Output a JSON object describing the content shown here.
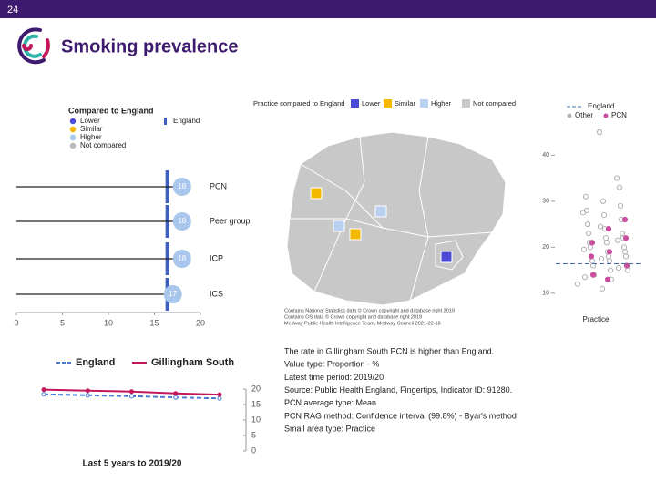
{
  "slide_number": "24",
  "title": "Smoking prevalence",
  "chart_data": [
    {
      "type": "lollipop",
      "legend_title": "Compared to England",
      "legend": [
        {
          "name": "Lower",
          "color": "#4b4bd6"
        },
        {
          "name": "Similar",
          "color": "#f5b800"
        },
        {
          "name": "Higher",
          "color": "#a9c6ec"
        },
        {
          "name": "Not compared",
          "color": "#b8b8b8"
        }
      ],
      "reference": {
        "name": "England",
        "value": 16.4,
        "color": "#3f5fbf"
      },
      "categories": [
        "PCN",
        "Peer group",
        "ICP",
        "ICS"
      ],
      "values": [
        18,
        18,
        18,
        17
      ],
      "color": "#a9c6ec",
      "xlim": [
        0,
        20
      ],
      "xticks": [
        0,
        5,
        10,
        15,
        20
      ]
    },
    {
      "type": "strip",
      "reference": {
        "name": "England",
        "value": 16.4,
        "color": "#3f6fb0"
      },
      "series": [
        {
          "name": "Other",
          "color": "#b0b0b0",
          "values": [
            12,
            13,
            14,
            15,
            15,
            16,
            16,
            17,
            17,
            18,
            18,
            18,
            19,
            19,
            20,
            20,
            21,
            21,
            22,
            22,
            23,
            23,
            24,
            25,
            26,
            27,
            28,
            29,
            30,
            31,
            33,
            11,
            13.5,
            15.5,
            17.5,
            19.5,
            21.5,
            24.5,
            27.5,
            35,
            45
          ]
        },
        {
          "name": "PCN",
          "color": "#c94f9e",
          "values": [
            14,
            16,
            19,
            21,
            22,
            24,
            18,
            26,
            13
          ]
        }
      ],
      "ylim": [
        7,
        46
      ],
      "yticks": [
        10,
        20,
        30,
        40
      ],
      "xlabel": "Practice"
    },
    {
      "type": "line",
      "categories": [
        null,
        null,
        null,
        null,
        null
      ],
      "series": [
        {
          "name": "England",
          "color": "#4a7bd0",
          "values": [
            18.3,
            18.0,
            17.7,
            17.3,
            17.0
          ]
        },
        {
          "name": "Gillingham South",
          "color": "#c2185b",
          "values": [
            19.8,
            19.5,
            19.2,
            18.6,
            18.2
          ]
        }
      ],
      "ylim": [
        0,
        20
      ],
      "yticks": [
        0,
        5,
        10,
        15,
        20
      ],
      "xlabel": "Last 5 years to 2019/20"
    }
  ],
  "map": {
    "legend_title": "Practice compared to England",
    "legend": [
      {
        "name": "Lower",
        "color": "#4b4bd6"
      },
      {
        "name": "Similar",
        "color": "#f5b800"
      },
      {
        "name": "Higher",
        "color": "#b8d1f0"
      },
      {
        "name": "Not compared",
        "color": "#c8c8c8"
      }
    ],
    "credits": [
      "Contains National Statistics data © Crown copyright and database right 2019",
      "Contains OS data © Crown copyright and database right 2019",
      "Medway Public Health Intelligence Team, Medway Council 2021-22-18"
    ]
  },
  "notes": [
    "The rate in Gillingham South PCN is higher than England.",
    "Value type: Proportion - %",
    "Latest time period: 2019/20",
    "Source: Public Health England, Fingertips, Indicator ID: 91280.",
    "PCN average type: Mean",
    "PCN RAG method: Confidence interval (99.8%) - Byar's method",
    "Small area type: Practice"
  ]
}
